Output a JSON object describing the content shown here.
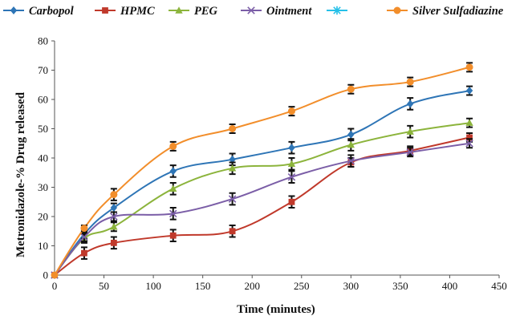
{
  "chart_data": {
    "type": "line",
    "title": "",
    "xlabel": "Time (minutes)",
    "ylabel": "Metronidazole-% Drug released",
    "xlim": [
      0,
      450
    ],
    "ylim": [
      0,
      80
    ],
    "x_ticks": [
      0,
      50,
      100,
      150,
      200,
      250,
      300,
      350,
      400,
      450
    ],
    "y_ticks": [
      0,
      10,
      20,
      30,
      40,
      50,
      60,
      70,
      80
    ],
    "grid": false,
    "legend_position": "top",
    "x": [
      0,
      30,
      60,
      120,
      180,
      240,
      300,
      360,
      420
    ],
    "series": [
      {
        "name": "Carbopol",
        "color": "#2e75b6",
        "marker": "diamond",
        "values": [
          0,
          14,
          23,
          35.5,
          39.5,
          43.5,
          48,
          58.5,
          63
        ],
        "errors": [
          0,
          1.5,
          1.5,
          2,
          2,
          2,
          2,
          2,
          1.5
        ]
      },
      {
        "name": "HPMC",
        "color": "#c0392b",
        "marker": "square",
        "values": [
          0,
          7.5,
          11,
          13.5,
          15,
          25,
          38.5,
          42.5,
          47
        ],
        "errors": [
          0,
          2,
          2,
          2,
          2,
          2,
          1.5,
          1.5,
          1.5
        ]
      },
      {
        "name": "PEG",
        "color": "#8cb43c",
        "marker": "triangle",
        "values": [
          0,
          12.5,
          16.5,
          29.5,
          36.5,
          38,
          44.5,
          49,
          52
        ],
        "errors": [
          0,
          1.5,
          1.5,
          2,
          2,
          2,
          2,
          2,
          1.5
        ]
      },
      {
        "name": "Ointment",
        "color": "#7b5ea7",
        "marker": "x",
        "values": [
          0,
          13,
          20,
          21,
          26,
          33.5,
          39,
          42,
          45
        ],
        "errors": [
          0,
          1.5,
          1.5,
          2,
          2,
          2,
          2,
          1.5,
          1.5
        ]
      },
      {
        "name": "Silver Sulfadiazine",
        "color": "#f28e2b",
        "marker": "circle",
        "values": [
          0,
          16,
          27.5,
          44,
          50,
          56,
          63.5,
          66,
          71
        ],
        "errors": [
          0,
          1,
          2,
          1.5,
          1.5,
          1.5,
          1.5,
          1.5,
          1.5
        ]
      }
    ],
    "legend_only": [
      {
        "name": "",
        "color": "#26c0e8",
        "marker": "asterisk"
      }
    ]
  }
}
